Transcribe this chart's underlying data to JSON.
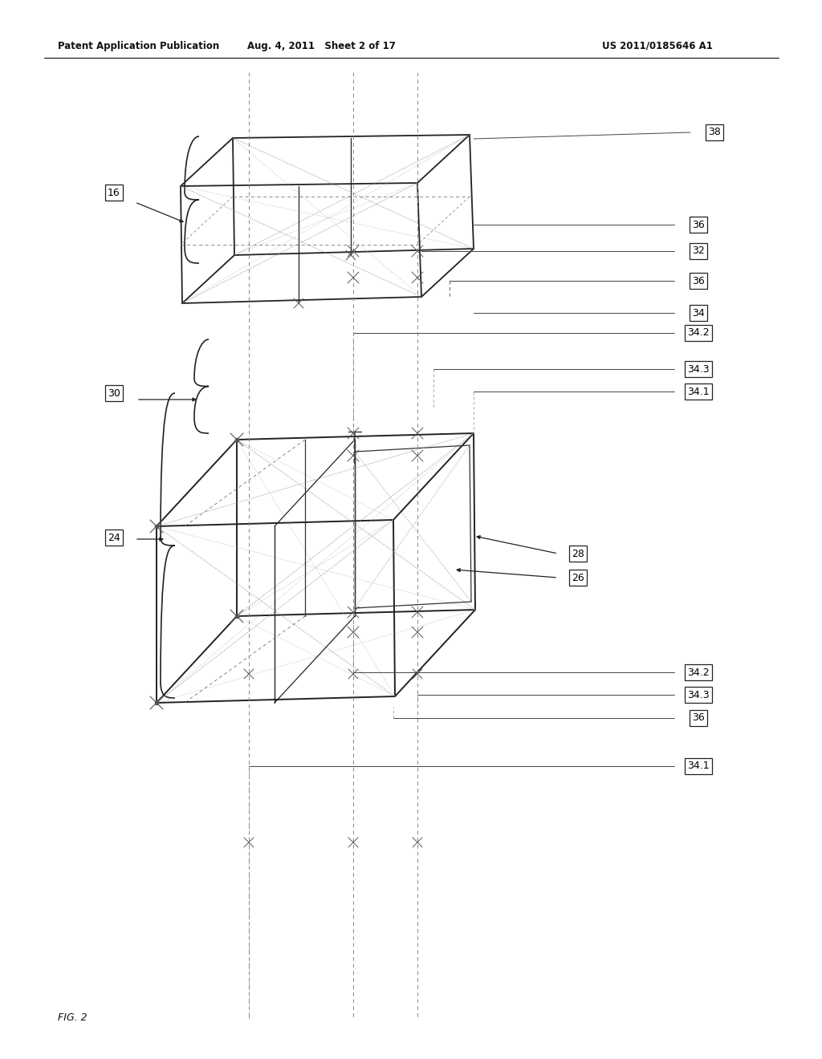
{
  "bg_color": "#ffffff",
  "header_left": "Patent Application Publication",
  "header_mid": "Aug. 4, 2011   Sheet 2 of 17",
  "header_right": "US 2011/0185646 A1",
  "footer": "FIG. 2"
}
